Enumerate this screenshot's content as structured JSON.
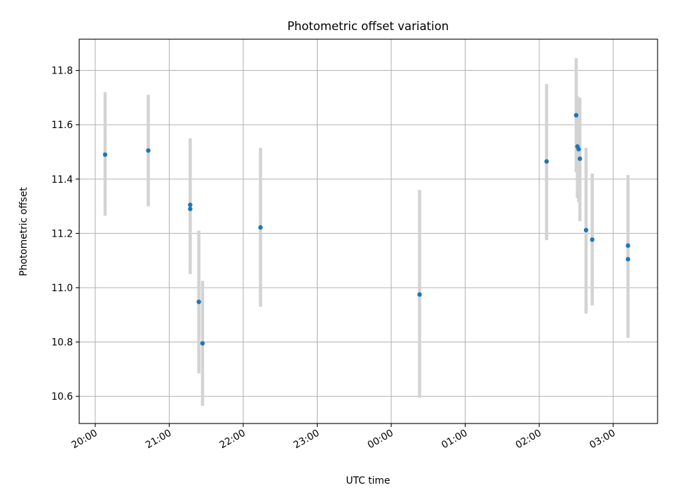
{
  "chart_data": {
    "type": "scatter",
    "title": "Photometric offset variation",
    "xlabel": "UTC time",
    "ylabel": "Photometric offset",
    "x_axis": "time",
    "xlim": [
      "19:47",
      "03:36"
    ],
    "xticks": [
      "20:00",
      "21:00",
      "22:00",
      "23:00",
      "00:00",
      "01:00",
      "02:00",
      "03:00"
    ],
    "ylim": [
      10.5,
      11.915
    ],
    "yticks": [
      "10.6",
      "10.8",
      "11.0",
      "11.2",
      "11.4",
      "11.6",
      "11.8"
    ],
    "grid": true,
    "legend": "none",
    "colors": {
      "point": "#1f77b4",
      "errorbar": "#d3d3d3"
    },
    "points": [
      {
        "x": "20:08",
        "y": 11.49,
        "yerr_low": 11.265,
        "yerr_high": 11.72
      },
      {
        "x": "20:43",
        "y": 11.505,
        "yerr_low": 11.3,
        "yerr_high": 11.71
      },
      {
        "x": "21:17",
        "y": 11.305,
        "yerr_low": 11.075,
        "yerr_high": 11.55
      },
      {
        "x": "21:17",
        "y": 11.29,
        "yerr_low": 11.05,
        "yerr_high": 11.525
      },
      {
        "x": "21:24",
        "y": 10.948,
        "yerr_low": 10.685,
        "yerr_high": 11.21
      },
      {
        "x": "21:27",
        "y": 10.795,
        "yerr_low": 10.565,
        "yerr_high": 11.025
      },
      {
        "x": "22:14",
        "y": 11.222,
        "yerr_low": 10.93,
        "yerr_high": 11.515
      },
      {
        "x": "00:23",
        "y": 10.975,
        "yerr_low": 10.595,
        "yerr_high": 11.36
      },
      {
        "x": "02:06",
        "y": 11.465,
        "yerr_low": 11.175,
        "yerr_high": 11.75
      },
      {
        "x": "02:30",
        "y": 11.635,
        "yerr_low": 11.425,
        "yerr_high": 11.845
      },
      {
        "x": "02:31",
        "y": 11.52,
        "yerr_low": 11.33,
        "yerr_high": 11.705
      },
      {
        "x": "02:32",
        "y": 11.51,
        "yerr_low": 11.315,
        "yerr_high": 11.695
      },
      {
        "x": "02:33",
        "y": 11.475,
        "yerr_low": 11.245,
        "yerr_high": 11.7
      },
      {
        "x": "02:38",
        "y": 11.212,
        "yerr_low": 10.905,
        "yerr_high": 11.515
      },
      {
        "x": "02:43",
        "y": 11.177,
        "yerr_low": 10.935,
        "yerr_high": 11.42
      },
      {
        "x": "03:12",
        "y": 11.155,
        "yerr_low": 10.895,
        "yerr_high": 11.415
      },
      {
        "x": "03:12",
        "y": 11.105,
        "yerr_low": 10.815,
        "yerr_high": 11.39
      }
    ]
  }
}
